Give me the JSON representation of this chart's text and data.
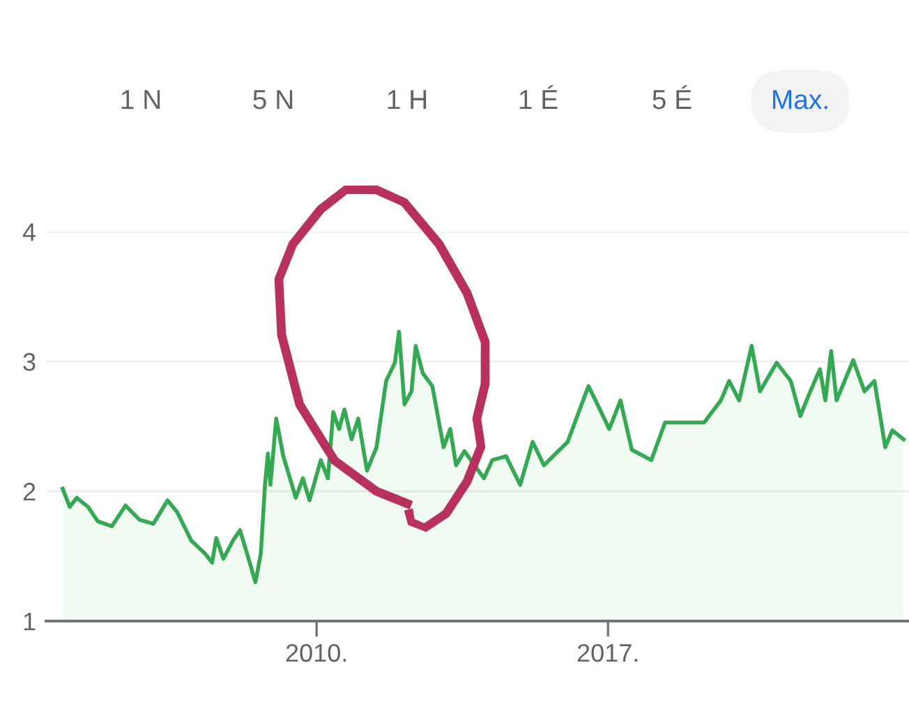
{
  "chart_data": {
    "type": "area",
    "annotations": [
      "1 N",
      "5 N",
      "1 H",
      "1 É",
      "5 É",
      "Max."
    ],
    "series": [
      {
        "color": "#34a853",
        "x": [
          2003.9,
          2004.07,
          2004.24,
          2004.51,
          2004.74,
          2005.08,
          2005.41,
          2005.75,
          2006.08,
          2006.42,
          2006.65,
          2006.99,
          2007.32,
          2007.49,
          2007.59,
          2007.76,
          2007.99,
          2008.16,
          2008.33,
          2008.53,
          2008.66,
          2008.76,
          2008.83,
          2008.89,
          2009.03,
          2009.2,
          2009.5,
          2009.67,
          2009.83,
          2010.1,
          2010.27,
          2010.4,
          2010.54,
          2010.67,
          2010.84,
          2011.0,
          2011.21,
          2011.44,
          2011.67,
          2011.88,
          2011.98,
          2012.11,
          2012.28,
          2012.38,
          2012.55,
          2012.78,
          2013.05,
          2013.21,
          2013.35,
          2013.55,
          2014.02,
          2014.22,
          2014.55,
          2014.89,
          2015.19,
          2015.46,
          2016.03,
          2016.53,
          2016.7,
          2017.03,
          2017.3,
          2017.57,
          2018.04,
          2018.37,
          2018.71,
          2019.31,
          2019.71,
          2019.91,
          2020.15,
          2020.45,
          2020.65,
          2021.05,
          2021.39,
          2021.62,
          2021.82,
          2022.09,
          2022.22,
          2022.36,
          2022.49,
          2022.89,
          2023.16,
          2023.4,
          2023.66,
          2023.83,
          2024.1
        ],
        "values": [
          2.02,
          1.88,
          1.95,
          1.88,
          1.77,
          1.73,
          1.89,
          1.78,
          1.75,
          1.93,
          1.84,
          1.62,
          1.52,
          1.45,
          1.64,
          1.48,
          1.62,
          1.7,
          1.52,
          1.3,
          1.52,
          2.05,
          2.29,
          2.05,
          2.56,
          2.27,
          1.95,
          2.1,
          1.93,
          2.24,
          2.1,
          2.61,
          2.48,
          2.63,
          2.4,
          2.56,
          2.16,
          2.34,
          2.85,
          2.99,
          3.23,
          2.67,
          2.77,
          3.12,
          2.91,
          2.81,
          2.34,
          2.48,
          2.2,
          2.31,
          2.1,
          2.24,
          2.27,
          2.05,
          2.38,
          2.2,
          2.38,
          2.81,
          2.7,
          2.48,
          2.7,
          2.32,
          2.24,
          2.53,
          2.53,
          2.53,
          2.7,
          2.85,
          2.7,
          3.12,
          2.77,
          2.99,
          2.85,
          2.58,
          2.74,
          2.94,
          2.7,
          3.08,
          2.7,
          3.01,
          2.77,
          2.85,
          2.34,
          2.47,
          2.4
        ]
      }
    ],
    "xlim": [
      2003.5,
      2024.23
    ],
    "xticks": [
      {
        "value": 2010,
        "label": "2010."
      },
      {
        "value": 2017,
        "label": "2017."
      }
    ],
    "ylim": [
      1,
      4
    ],
    "yticks": [
      1,
      2,
      3,
      4
    ],
    "grid": "y"
  }
}
